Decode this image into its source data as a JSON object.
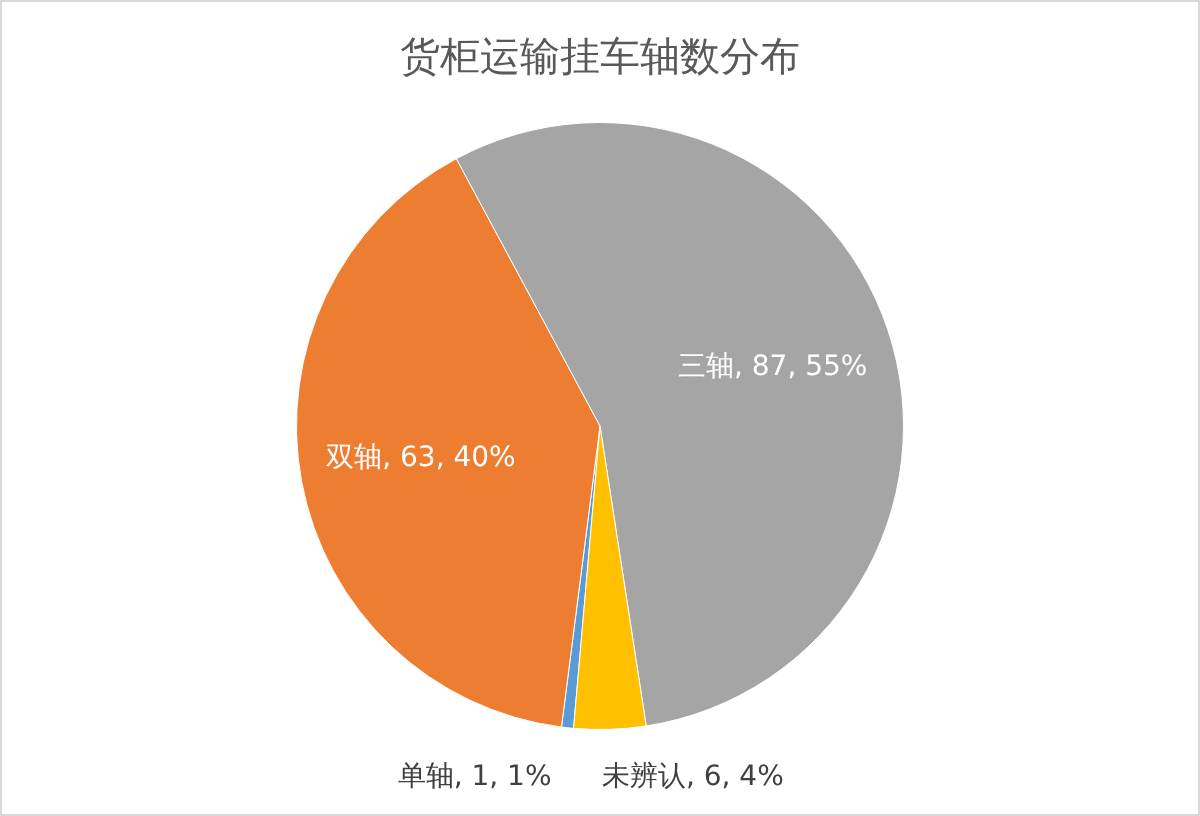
{
  "chart_data": {
    "type": "pie",
    "title": "货柜运输挂车轴数分布",
    "categories": [
      "单轴",
      "双轴",
      "三轴",
      "未辨认"
    ],
    "values": [
      1,
      63,
      87,
      6
    ],
    "value_labels": [
      "1, 1%",
      "63, 40%",
      "87, 55%",
      "6, 4%"
    ],
    "colors": [
      "#5b9bd5",
      "#ed7d31",
      "#a5a5a5",
      "#ffc000"
    ],
    "legend": false
  }
}
